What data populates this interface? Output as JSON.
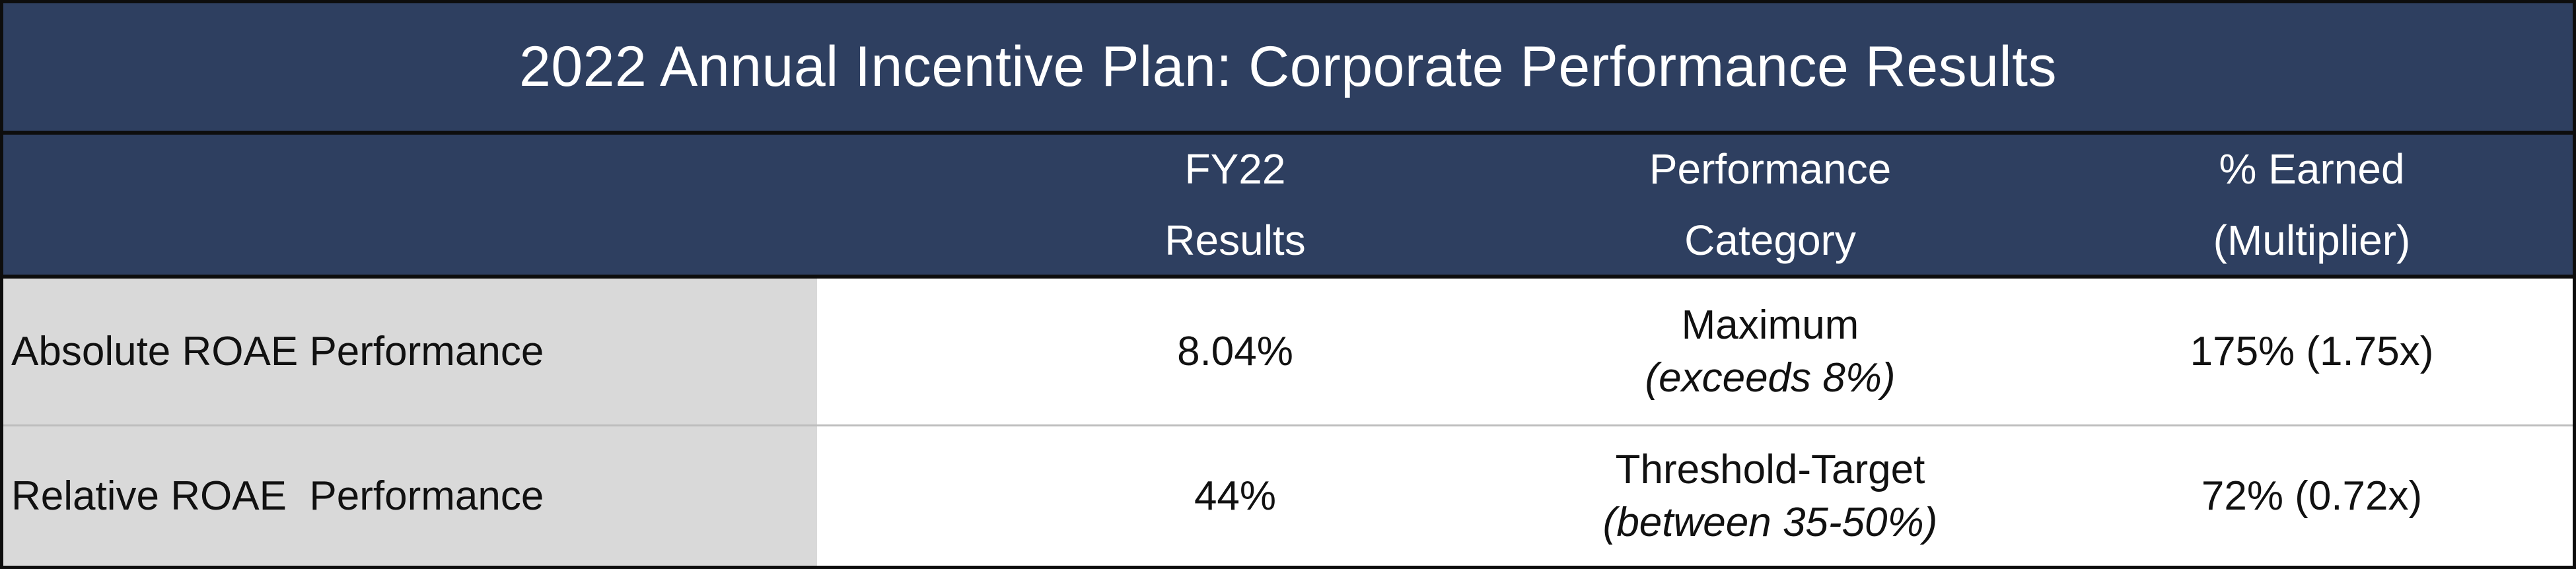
{
  "title": "2022 Annual Incentive Plan: Corporate Performance Results",
  "headers": {
    "metric": "",
    "results": [
      "FY22",
      "Results"
    ],
    "category": [
      "Performance",
      "Category"
    ],
    "earned": [
      "% Earned",
      "(Multiplier)"
    ]
  },
  "rows": [
    {
      "metric": "Absolute ROAE Performance",
      "result": "8.04%",
      "category": "Maximum",
      "category_note": "(exceeds 8%)",
      "earned": "175% (1.75x)"
    },
    {
      "metric": "Relative ROAE  Performance",
      "result": "44%",
      "category": "Threshold-Target",
      "category_note": "(between 35-50%)",
      "earned": "72% (0.72x)"
    }
  ],
  "colors": {
    "header_bg": "#2e3f60",
    "label_bg": "#d9d9d9",
    "border": "#0d0d0d"
  }
}
